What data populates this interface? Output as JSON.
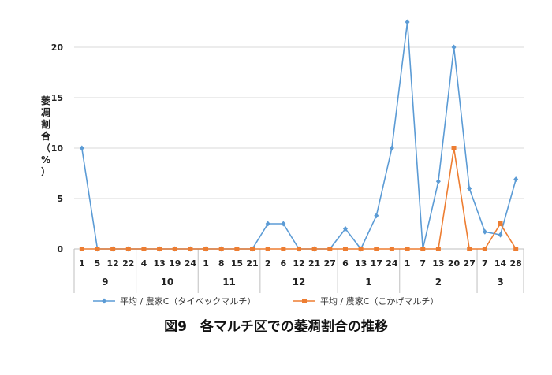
{
  "chart_data": {
    "type": "line",
    "caption": "図9　各マルチ区での萎凋割合の推移",
    "ylabel_chars": [
      "萎",
      "凋",
      "割",
      "合",
      "（",
      "%",
      "）"
    ],
    "ylim": [
      0,
      25
    ],
    "y_ticks": [
      "0",
      "5",
      "10",
      "15",
      "20",
      "25"
    ],
    "x_days": [
      "1",
      "5",
      "12",
      "22",
      "4",
      "13",
      "19",
      "24",
      "1",
      "8",
      "15",
      "21",
      "2",
      "6",
      "12",
      "21",
      "27",
      "6",
      "13",
      "17",
      "24",
      "1",
      "7",
      "13",
      "20",
      "27",
      "7",
      "14",
      "28"
    ],
    "months": [
      {
        "label": "9",
        "start": 0,
        "end": 3
      },
      {
        "label": "10",
        "start": 4,
        "end": 7
      },
      {
        "label": "11",
        "start": 8,
        "end": 11
      },
      {
        "label": "12",
        "start": 12,
        "end": 16
      },
      {
        "label": "1",
        "start": 17,
        "end": 20
      },
      {
        "label": "2",
        "start": 21,
        "end": 25
      },
      {
        "label": "3",
        "start": 26,
        "end": 28
      }
    ],
    "series": [
      {
        "name": "平均 / 農家C（タイベックマルチ）",
        "color": "#5B9BD5",
        "marker": "diamond",
        "values": [
          10,
          0,
          0,
          0,
          0,
          0,
          0,
          0,
          0,
          0,
          0,
          0,
          2.5,
          2.5,
          0,
          0,
          0,
          2,
          0,
          3.3,
          10,
          22.5,
          0,
          6.7,
          20,
          6,
          1.7,
          1.4,
          6.9
        ]
      },
      {
        "name": "平均 / 農家C（こかげマルチ）",
        "color": "#ED7D31",
        "marker": "square",
        "values": [
          0,
          0,
          0,
          0,
          0,
          0,
          0,
          0,
          0,
          0,
          0,
          0,
          0,
          0,
          0,
          0,
          0,
          0,
          0,
          0,
          0,
          0,
          0,
          0,
          10,
          0,
          0,
          2.5,
          0
        ]
      }
    ],
    "grid": true,
    "legend_position": "bottom"
  }
}
